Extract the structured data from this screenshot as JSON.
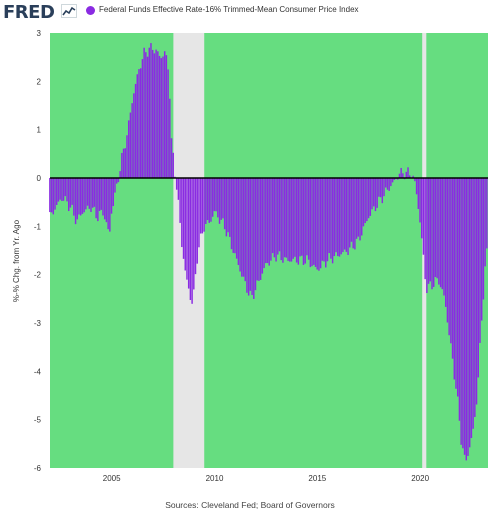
{
  "header": {
    "logo": "FRED",
    "logo_icon": "line-chart-icon",
    "legend_label": "Federal Funds Effective Rate-16% Trimmed-Mean Consumer Price Index"
  },
  "footer": {
    "sources": "Sources: Cleveland Fed; Board of Governors"
  },
  "colors": {
    "series": "#8a2be2",
    "series_dark": "#6a1fc4",
    "plot_background": "#66dd80",
    "recession": "#e6e6e6",
    "zero_line": "#000000"
  },
  "chart_data": {
    "type": "bar",
    "title": "",
    "xlabel": "",
    "ylabel": "%-% Chg. from Yr. Ago",
    "xlim": [
      2002.0,
      2023.3
    ],
    "ylim": [
      -6,
      3
    ],
    "x_ticks": [
      2005,
      2010,
      2015,
      2020
    ],
    "y_ticks": [
      3,
      2,
      1,
      0,
      -1,
      -2,
      -3,
      -4,
      -5,
      -6
    ],
    "grid": false,
    "legend_position": "top",
    "series": [
      {
        "name": "Federal Funds Effective Rate-16% Trimmed-Mean Consumer Price Index",
        "anchors_x": [
          2002.0,
          2002.3,
          2002.6,
          2003.0,
          2003.3,
          2003.6,
          2004.0,
          2004.3,
          2004.6,
          2004.9,
          2005.0,
          2005.2,
          2005.5,
          2005.8,
          2006.0,
          2006.3,
          2006.6,
          2007.0,
          2007.2,
          2007.4,
          2007.6,
          2007.8,
          2007.9,
          2008.2,
          2008.4,
          2008.6,
          2008.9,
          2009.0,
          2009.2,
          2009.5,
          2009.8,
          2010.0,
          2010.5,
          2011.0,
          2011.5,
          2011.8,
          2012.0,
          2012.5,
          2013.0,
          2013.5,
          2014.0,
          2014.5,
          2015.0,
          2015.5,
          2016.0,
          2016.5,
          2017.0,
          2017.5,
          2018.0,
          2018.5,
          2018.8,
          2019.0,
          2019.3,
          2019.6,
          2019.8,
          2020.0,
          2020.2,
          2020.3,
          2020.6,
          2020.9,
          2021.2,
          2021.5,
          2021.8,
          2022.0,
          2022.2,
          2022.4,
          2022.6,
          2022.8,
          2023.0,
          2023.2,
          2023.3
        ],
        "anchors_y": [
          -0.8,
          -0.6,
          -0.4,
          -0.6,
          -0.9,
          -0.7,
          -0.6,
          -0.8,
          -0.7,
          -1.2,
          -0.7,
          -0.3,
          0.4,
          1.0,
          1.6,
          2.2,
          2.6,
          2.7,
          2.6,
          2.5,
          2.6,
          2.2,
          0.8,
          -0.3,
          -1.3,
          -2.0,
          -2.6,
          -2.4,
          -1.5,
          -1.0,
          -0.9,
          -0.7,
          -1.0,
          -1.6,
          -2.2,
          -2.5,
          -2.3,
          -1.8,
          -1.6,
          -1.7,
          -1.7,
          -1.7,
          -1.9,
          -1.7,
          -1.6,
          -1.5,
          -1.3,
          -0.8,
          -0.5,
          -0.2,
          -0.05,
          0.1,
          0.1,
          0.1,
          -0.2,
          -0.9,
          -1.8,
          -2.3,
          -2.2,
          -2.1,
          -2.5,
          -3.5,
          -4.5,
          -5.4,
          -5.9,
          -5.6,
          -5.2,
          -4.4,
          -2.9,
          -1.7,
          -1.4
        ]
      }
    ],
    "recessions": [
      [
        2008.0,
        2009.5
      ],
      [
        2020.1,
        2020.3
      ]
    ]
  }
}
